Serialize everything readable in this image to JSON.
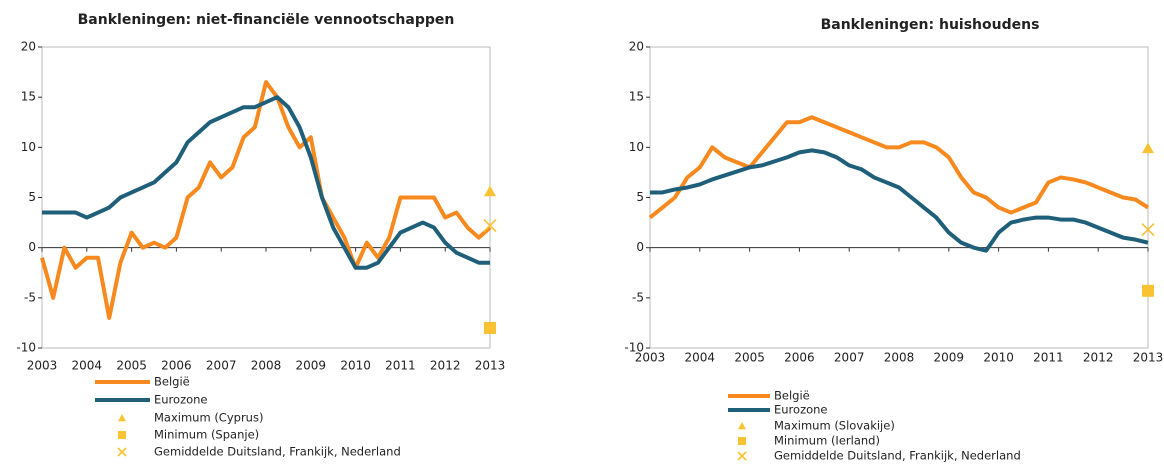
{
  "chart_data": [
    {
      "type": "line",
      "title": "Bankleningen: niet-financiële vennootschappen",
      "x": [
        2003,
        2003.25,
        2003.5,
        2003.75,
        2004,
        2004.25,
        2004.5,
        2004.75,
        2005,
        2005.25,
        2005.5,
        2005.75,
        2006,
        2006.25,
        2006.5,
        2006.75,
        2007,
        2007.25,
        2007.5,
        2007.75,
        2008,
        2008.25,
        2008.5,
        2008.75,
        2009,
        2009.25,
        2009.5,
        2009.75,
        2010,
        2010.25,
        2010.5,
        2010.75,
        2011,
        2011.25,
        2011.5,
        2011.75,
        2012,
        2012.25,
        2012.5,
        2012.75,
        2013
      ],
      "xlim": [
        2003,
        2013
      ],
      "xticks": [
        2003,
        2004,
        2005,
        2006,
        2007,
        2008,
        2009,
        2010,
        2011,
        2012,
        2013
      ],
      "ylim": [
        -10,
        20
      ],
      "yticks": [
        -10,
        -5,
        0,
        5,
        10,
        15,
        20
      ],
      "series": [
        {
          "name": "België",
          "color": "#f7891e",
          "values": [
            -1,
            -5,
            0,
            -2,
            -1,
            -1,
            -7,
            -1.5,
            1.5,
            0,
            0.5,
            0,
            1,
            5,
            6,
            8.5,
            7,
            8,
            11,
            12,
            16.5,
            15,
            12,
            10,
            11,
            5,
            3,
            1,
            -2,
            0.5,
            -1,
            1,
            5,
            5,
            5,
            5,
            3,
            3.5,
            2,
            1,
            2
          ]
        },
        {
          "name": "Eurozone",
          "color": "#1f5f7a",
          "values": [
            3.5,
            3.5,
            3.5,
            3.5,
            3,
            3.5,
            4,
            5,
            5.5,
            6,
            6.5,
            7.5,
            8.5,
            10.5,
            11.5,
            12.5,
            13,
            13.5,
            14,
            14,
            14.5,
            15,
            14,
            12,
            9,
            5,
            2,
            0,
            -2,
            -2,
            -1.5,
            0,
            1.5,
            2,
            2.5,
            2,
            0.5,
            -0.5,
            -1,
            -1.5,
            -1.5
          ]
        }
      ],
      "markers": [
        {
          "name": "Maximum (Cyprus)",
          "symbol": "triangle",
          "color": "#f9c232",
          "value": 5.6
        },
        {
          "name": "Minimum (Spanje)",
          "symbol": "square",
          "color": "#f9c232",
          "value": -8
        },
        {
          "name": "Gemiddelde Duitsland, Frankijk, Nederland",
          "symbol": "cross",
          "color": "#f9c232",
          "value": 2.2
        }
      ]
    },
    {
      "type": "line",
      "title": "Bankleningen: huishoudens",
      "x": [
        2003,
        2003.25,
        2003.5,
        2003.75,
        2004,
        2004.25,
        2004.5,
        2004.75,
        2005,
        2005.25,
        2005.5,
        2005.75,
        2006,
        2006.25,
        2006.5,
        2006.75,
        2007,
        2007.25,
        2007.5,
        2007.75,
        2008,
        2008.25,
        2008.5,
        2008.75,
        2009,
        2009.25,
        2009.5,
        2009.75,
        2010,
        2010.25,
        2010.5,
        2010.75,
        2011,
        2011.25,
        2011.5,
        2011.75,
        2012,
        2012.25,
        2012.5,
        2012.75,
        2013
      ],
      "xlim": [
        2003,
        2013
      ],
      "xticks": [
        2003,
        2004,
        2005,
        2006,
        2007,
        2008,
        2009,
        2010,
        2011,
        2012,
        2013
      ],
      "ylim": [
        -10,
        20
      ],
      "yticks": [
        -10,
        -5,
        0,
        5,
        10,
        15,
        20
      ],
      "series": [
        {
          "name": "België",
          "color": "#f7891e",
          "values": [
            3,
            4,
            5,
            7,
            8,
            10,
            9,
            8.5,
            8,
            9.5,
            11,
            12.5,
            12.5,
            13,
            12.5,
            12,
            11.5,
            11,
            10.5,
            10,
            10,
            10.5,
            10.5,
            10,
            9,
            7,
            5.5,
            5,
            4,
            3.5,
            4,
            4.5,
            6.5,
            7,
            6.8,
            6.5,
            6,
            5.5,
            5,
            4.8,
            4
          ]
        },
        {
          "name": "Eurozone",
          "color": "#1f5f7a",
          "values": [
            5.5,
            5.5,
            5.8,
            6,
            6.3,
            6.8,
            7.2,
            7.6,
            8,
            8.2,
            8.6,
            9,
            9.5,
            9.7,
            9.5,
            9,
            8.2,
            7.8,
            7,
            6.5,
            6,
            5,
            4,
            3,
            1.5,
            0.5,
            0,
            -0.3,
            1.5,
            2.5,
            2.8,
            3,
            3,
            2.8,
            2.8,
            2.5,
            2,
            1.5,
            1,
            0.8,
            0.5
          ]
        }
      ],
      "markers": [
        {
          "name": "Maximum (Slovakije)",
          "symbol": "triangle",
          "color": "#f9c232",
          "value": 9.9
        },
        {
          "name": "Minimum (Ierland)",
          "symbol": "square",
          "color": "#f9c232",
          "value": -4.3
        },
        {
          "name": "Gemiddelde Duitsland, Frankijk, Nederland",
          "symbol": "cross",
          "color": "#f9c232",
          "value": 1.8
        }
      ]
    }
  ]
}
